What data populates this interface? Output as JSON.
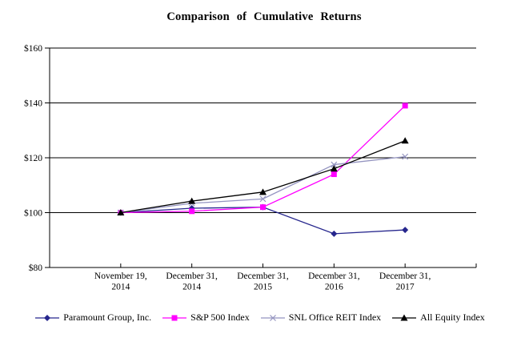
{
  "page": {
    "background": "#ffffff"
  },
  "chart_data": {
    "type": "line",
    "title": "Comparison of Cumulative Returns",
    "xlabel": "",
    "ylabel": "",
    "ylim": [
      80,
      160
    ],
    "y_tick_step": 20,
    "grid": "horizontal",
    "legend_position": "bottom",
    "y_ticks": [
      {
        "label": "$160",
        "value": 160
      },
      {
        "label": "$140",
        "value": 140
      },
      {
        "label": "$120",
        "value": 120
      },
      {
        "label": "$100",
        "value": 100
      },
      {
        "label": "$80",
        "value": 80
      }
    ],
    "categories": [
      [
        "November 19,",
        "2014"
      ],
      [
        "December 31,",
        "2014"
      ],
      [
        "December 31,",
        "2015"
      ],
      [
        "December 31,",
        "2016"
      ],
      [
        "December 31,",
        "2017"
      ]
    ],
    "series": [
      {
        "name": "Paramount Group, Inc.",
        "marker": "diamond",
        "color": "#26268d",
        "values": [
          100,
          101.6,
          102.0,
          92.3,
          93.7
        ]
      },
      {
        "name": "S&P 500 Index",
        "marker": "square",
        "color": "#ff00ff",
        "values": [
          100,
          100.5,
          102.0,
          114.0,
          139.0
        ]
      },
      {
        "name": "SNL Office REIT Index",
        "marker": "x",
        "color": "#9494c0",
        "values": [
          100,
          103.4,
          105.0,
          117.5,
          120.4
        ]
      },
      {
        "name": "All Equity Index",
        "marker": "triangle",
        "color": "#000000",
        "values": [
          100,
          104.2,
          107.5,
          116.0,
          126.2
        ]
      }
    ]
  }
}
